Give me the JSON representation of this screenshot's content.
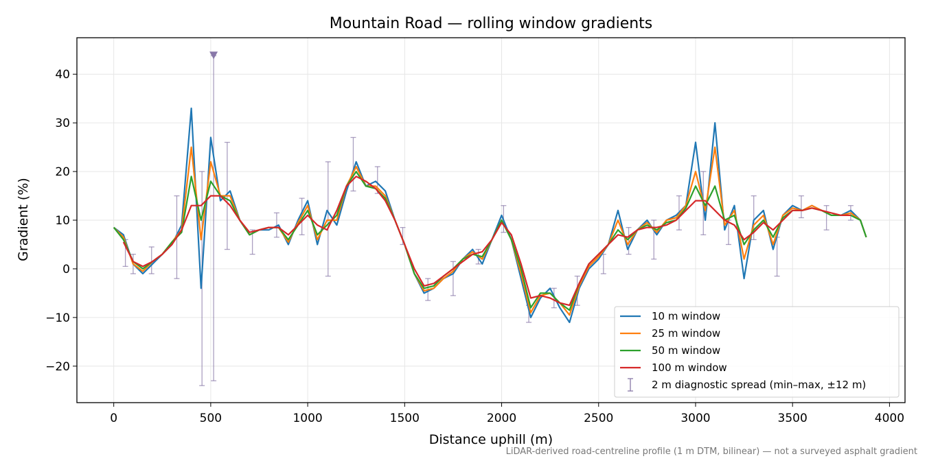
{
  "chart_data": {
    "type": "line",
    "title": "Mountain Road — rolling window gradients",
    "xlabel": "Distance uphill (m)",
    "ylabel": "Gradient (%)",
    "xlim": [
      -190,
      4080
    ],
    "ylim": [
      -27.5,
      47.5
    ],
    "x_ticks": [
      0,
      500,
      1000,
      1500,
      2000,
      2500,
      3000,
      3500,
      4000
    ],
    "x_tick_labels": [
      "0",
      "500",
      "1000",
      "1500",
      "2000",
      "2500",
      "3000",
      "3500",
      "4000"
    ],
    "y_ticks": [
      -20,
      -10,
      0,
      10,
      20,
      30,
      40
    ],
    "y_tick_labels": [
      "−20",
      "−10",
      "0",
      "10",
      "20",
      "30",
      "40"
    ],
    "grid": true,
    "legend_position": "lower-right",
    "x": [
      0,
      50,
      100,
      150,
      200,
      250,
      300,
      350,
      400,
      450,
      500,
      550,
      600,
      650,
      700,
      750,
      800,
      850,
      900,
      950,
      1000,
      1050,
      1100,
      1150,
      1200,
      1250,
      1300,
      1350,
      1400,
      1450,
      1500,
      1550,
      1600,
      1650,
      1700,
      1750,
      1800,
      1850,
      1900,
      1950,
      2000,
      2050,
      2100,
      2150,
      2200,
      2250,
      2300,
      2350,
      2400,
      2450,
      2500,
      2550,
      2600,
      2650,
      2700,
      2750,
      2800,
      2850,
      2900,
      2950,
      3000,
      3050,
      3100,
      3150,
      3200,
      3250,
      3300,
      3350,
      3400,
      3450,
      3500,
      3550,
      3600,
      3650,
      3700,
      3750,
      3800,
      3850,
      3880
    ],
    "series": [
      {
        "name": "10 m window",
        "color": "#1f77b4",
        "values": [
          8.5,
          7,
          1,
          -1,
          1,
          3,
          5,
          9,
          33,
          -4,
          27,
          14,
          16,
          10,
          7,
          8,
          8,
          9,
          5,
          10,
          14,
          5,
          12,
          9,
          16,
          22,
          17,
          18,
          16,
          10,
          5,
          -1,
          -5,
          -4,
          -2,
          -1,
          2,
          4,
          1,
          6,
          11,
          6,
          -2,
          -10,
          -6,
          -4,
          -8,
          -11,
          -4,
          0,
          2,
          5,
          12,
          4,
          8,
          10,
          7,
          10,
          11,
          13,
          26,
          10,
          30,
          8,
          13,
          -2,
          10,
          12,
          4,
          11,
          13,
          12,
          13,
          12,
          11,
          11,
          12,
          10,
          6.5
        ]
      },
      {
        "name": "25 m window",
        "color": "#ff7f0e",
        "values": [
          8.5,
          6.5,
          1,
          -0.5,
          1.5,
          3,
          5.5,
          8,
          25,
          6,
          22,
          15,
          15,
          10,
          7,
          8,
          8.5,
          8.5,
          5.5,
          9.5,
          13,
          6,
          10,
          10,
          17,
          21,
          17,
          17,
          15,
          10,
          5,
          -1,
          -4.5,
          -4,
          -2,
          -0.5,
          2,
          3.5,
          2,
          6,
          10,
          6,
          -1,
          -9,
          -5.5,
          -5,
          -7,
          -9.5,
          -3.5,
          0.5,
          2.5,
          5,
          10,
          5,
          8,
          9.5,
          7.5,
          10,
          10.5,
          13,
          20,
          12,
          25,
          9,
          12,
          2,
          9,
          11,
          5,
          11,
          12.5,
          12,
          13,
          12,
          11,
          11,
          11.5,
          10,
          6.5
        ]
      },
      {
        "name": "50 m window",
        "color": "#2ca02c",
        "values": [
          8.5,
          6,
          1.5,
          0,
          1.5,
          3,
          5.5,
          7.5,
          19,
          10,
          18,
          15,
          14,
          10,
          7,
          8,
          8.5,
          8.5,
          6,
          9,
          12,
          7,
          9,
          11,
          17,
          20,
          17,
          16.5,
          14.5,
          10,
          5,
          -1,
          -4,
          -3.5,
          -1.5,
          0,
          2,
          3,
          2.5,
          6,
          10,
          6,
          0,
          -8,
          -5,
          -5,
          -7,
          -8.5,
          -3,
          1,
          3,
          5,
          8,
          6,
          8,
          9,
          8,
          9.5,
          10,
          12.5,
          17,
          13,
          17,
          10,
          11,
          5,
          8,
          10,
          6.5,
          10.5,
          12,
          12,
          12.5,
          12,
          11,
          11,
          11,
          10,
          6.5
        ]
      },
      {
        "name": "100 m window",
        "color": "#d62728",
        "values": [
          null,
          5.5,
          1.5,
          0.5,
          1.5,
          3,
          5,
          8,
          13,
          13,
          15,
          15,
          13,
          10,
          7.5,
          8,
          8.5,
          8.5,
          7,
          9,
          11,
          9,
          8,
          12,
          17,
          19,
          18,
          16.5,
          14,
          10,
          5,
          0,
          -3.5,
          -3,
          -1.5,
          0,
          1.5,
          3,
          3.5,
          6,
          9.5,
          7,
          1,
          -6,
          -5.5,
          -6,
          -7,
          -7.5,
          -3,
          1,
          3,
          5,
          7,
          6.5,
          8,
          8.5,
          8.5,
          9,
          10,
          12,
          14,
          14,
          12,
          10,
          9,
          6,
          7.5,
          9.5,
          8,
          10,
          12,
          12,
          12.5,
          12,
          11.5,
          11,
          11,
          null,
          null
        ]
      }
    ],
    "error_bars": {
      "name": "2 m diagnostic spread (min–max, ±12 m)",
      "color": "#8878a8",
      "points": [
        {
          "x": 60,
          "low": 0.5,
          "high": 6
        },
        {
          "x": 100,
          "low": -1,
          "high": 3
        },
        {
          "x": 195,
          "low": -1,
          "high": 4.5
        },
        {
          "x": 325,
          "low": -2,
          "high": 15
        },
        {
          "x": 455,
          "low": -24,
          "high": 20
        },
        {
          "x": 515,
          "low": -23,
          "high": 43.8
        },
        {
          "x": 585,
          "low": 4,
          "high": 26
        },
        {
          "x": 715,
          "low": 3,
          "high": 8
        },
        {
          "x": 840,
          "low": 6.5,
          "high": 11.5
        },
        {
          "x": 970,
          "low": 7,
          "high": 14.5
        },
        {
          "x": 1105,
          "low": -1.5,
          "high": 22
        },
        {
          "x": 1235,
          "low": 16,
          "high": 27
        },
        {
          "x": 1360,
          "low": 15.5,
          "high": 21
        },
        {
          "x": 1490,
          "low": 5,
          "high": 8.5
        },
        {
          "x": 1620,
          "low": -6.5,
          "high": -2
        },
        {
          "x": 1750,
          "low": -5.5,
          "high": 1.5
        },
        {
          "x": 1880,
          "low": 1,
          "high": 4
        },
        {
          "x": 2010,
          "low": 7.5,
          "high": 13
        },
        {
          "x": 2140,
          "low": -11,
          "high": -7.5
        },
        {
          "x": 2270,
          "low": -8,
          "high": -4
        },
        {
          "x": 2390,
          "low": -7.5,
          "high": -1.5
        },
        {
          "x": 2525,
          "low": -1,
          "high": 3
        },
        {
          "x": 2655,
          "low": 3,
          "high": 8.5
        },
        {
          "x": 2785,
          "low": 2,
          "high": 10
        },
        {
          "x": 2915,
          "low": 8,
          "high": 15
        },
        {
          "x": 3040,
          "low": 7,
          "high": 20
        },
        {
          "x": 3170,
          "low": 5,
          "high": 10
        },
        {
          "x": 3300,
          "low": 6,
          "high": 15
        },
        {
          "x": 3420,
          "low": -1.5,
          "high": 6.5
        },
        {
          "x": 3545,
          "low": 10.5,
          "high": 15
        },
        {
          "x": 3675,
          "low": 8,
          "high": 13
        },
        {
          "x": 3800,
          "low": 10,
          "high": 13
        }
      ],
      "clipped_marker": {
        "x": 515,
        "y": 43.8
      }
    },
    "footnote": "LiDAR-derived road-centreline profile (1 m DTM, bilinear) — not a surveyed asphalt gradient"
  }
}
